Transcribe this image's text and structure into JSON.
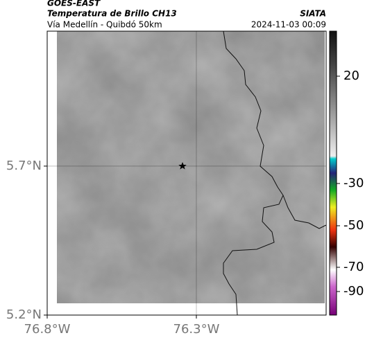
{
  "header": {
    "source": "GOES-EAST",
    "product": "Temperatura de Brillo CH13",
    "agency": "SIATA",
    "region": "Vía Medellín - Quibdó 50km",
    "timestamp": "2024-11-03 00:09"
  },
  "map": {
    "xlim": [
      -76.8,
      -75.865
    ],
    "ylim": [
      5.2,
      6.153
    ],
    "xticks": [
      {
        "value": -76.8,
        "label": "76.8°W"
      },
      {
        "value": -76.3,
        "label": "76.3°W"
      }
    ],
    "yticks": [
      {
        "value": 5.7,
        "label": "5.7°N"
      },
      {
        "value": 5.2,
        "label": "5.2°N"
      }
    ]
  },
  "colorbar": {
    "ticks": [
      20,
      -30,
      -50,
      -70,
      -90
    ]
  }
}
